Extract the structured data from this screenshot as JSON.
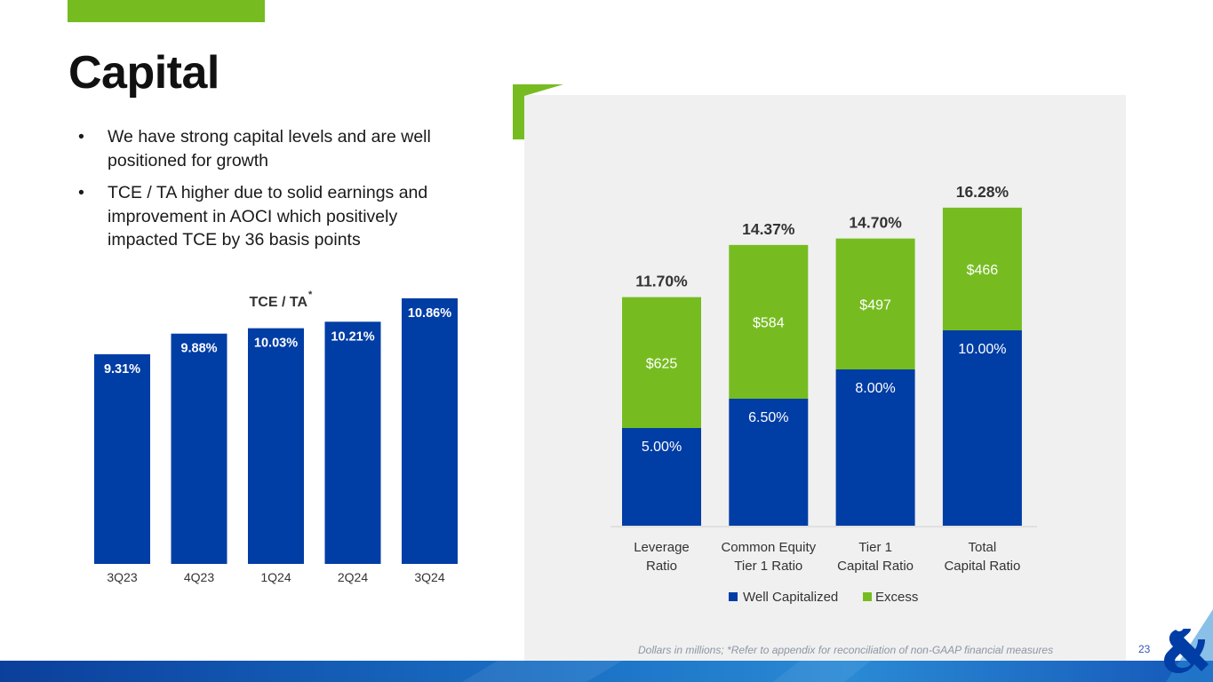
{
  "slide": {
    "title": "Capital",
    "page_number": "23",
    "footnote": "Dollars in millions; *Refer to appendix for reconciliation of non-GAAP financial measures",
    "bullets": [
      "We have strong capital levels and are well positioned for growth",
      "TCE / TA higher due to solid earnings and improvement in AOCI which positively impacted TCE by 36 basis points"
    ]
  },
  "colors": {
    "navy": "#003da5",
    "green": "#76bc21",
    "panel": "#f0f0f0",
    "label_dark": "#333333"
  },
  "chart_data": [
    {
      "type": "bar",
      "title": "TCE / TA",
      "title_marker": "*",
      "categories": [
        "3Q23",
        "4Q23",
        "1Q24",
        "2Q24",
        "3Q24"
      ],
      "values": [
        9.31,
        9.88,
        10.03,
        10.21,
        10.86
      ],
      "data_labels": [
        "9.31%",
        "9.88%",
        "10.03%",
        "10.21%",
        "10.86%"
      ],
      "ylim": [
        3.5,
        11.3
      ],
      "unit": "%"
    },
    {
      "type": "bar",
      "stacked": true,
      "categories": [
        [
          "Leverage",
          "Ratio"
        ],
        [
          "Common Equity",
          "Tier 1 Ratio"
        ],
        [
          "Tier 1",
          "Capital Ratio"
        ],
        [
          "Total",
          "Capital Ratio"
        ]
      ],
      "series": [
        {
          "name": "Well Capitalized",
          "values": [
            5.0,
            6.5,
            8.0,
            10.0
          ],
          "labels": [
            "5.00%",
            "6.50%",
            "8.00%",
            "10.00%"
          ]
        },
        {
          "name": "Excess",
          "values": [
            6.7,
            7.87,
            6.7,
            6.28
          ],
          "labels": [
            "$625",
            "$584",
            "$497",
            "$466"
          ]
        }
      ],
      "totals": [
        "11.70%",
        "14.37%",
        "14.70%",
        "16.28%"
      ],
      "ylim": [
        0,
        16.4
      ],
      "legend": "bottom"
    }
  ]
}
